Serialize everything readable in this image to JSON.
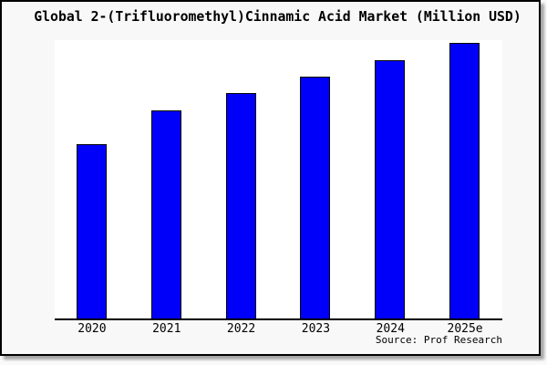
{
  "title": "Global 2-(Trifluoromethyl)Cinnamic Acid Market (Million USD)",
  "source": "Source: Prof Research",
  "colors": {
    "bar_fill": "#0000fa",
    "bar_edge": "#000000",
    "plot_bg": "#ffffff",
    "canvas_bg": "#f8f8f8",
    "frame_border": "#000000"
  },
  "chart_data": {
    "type": "bar",
    "title": "Global 2-(Trifluoromethyl)Cinnamic Acid Market (Million USD)",
    "categories": [
      "2020",
      "2021",
      "2022",
      "2023",
      "2024",
      "2025e"
    ],
    "values": [
      62,
      74,
      80,
      86,
      92,
      98
    ],
    "xlabel": "",
    "ylabel": "",
    "ylim": [
      0,
      100
    ],
    "grid": false,
    "legend": false,
    "y_axis_visible": false,
    "annotation": "Source: Prof Research"
  }
}
